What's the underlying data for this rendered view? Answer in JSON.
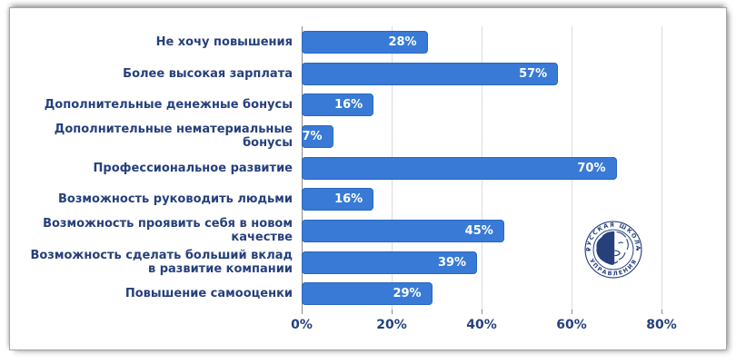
{
  "chart_data": {
    "type": "bar",
    "orientation": "horizontal",
    "title": "",
    "xlabel": "",
    "ylabel": "",
    "categories": [
      "Не хочу повышения",
      "Более высокая зарплата",
      "Дополнительные денежные бонусы",
      "Дополнительные нематериальные\nбонусы",
      "Профессиональное развитие",
      "Возможность руководить людьми",
      "Возможность проявить себя в новом\nкачестве",
      "Возможность сделать больший вклад\nв развитие компании",
      "Повышение самооценки"
    ],
    "values": [
      28,
      57,
      16,
      7,
      70,
      16,
      45,
      39,
      29
    ],
    "value_suffix": "%",
    "x_ticks": [
      "0%",
      "20%",
      "40%",
      "60%",
      "80%"
    ],
    "x_tick_values": [
      0,
      20,
      40,
      60,
      80
    ],
    "xlim": [
      0,
      90.7
    ],
    "grid": "vertical",
    "legend": "none",
    "colors": {
      "bar_fill": "#387ad6",
      "bar_border": "#2b66be",
      "category_label": "#26407c",
      "value_label": "#ffffff",
      "gridline": "#dddddd",
      "axis_line": "#8c8c8c"
    }
  },
  "logo": {
    "name": "Русская школа управления",
    "text_top": "РУССКАЯ ШКОЛА",
    "text_bottom": "УПРАВЛЕНИЯ",
    "color": "#26407c"
  }
}
